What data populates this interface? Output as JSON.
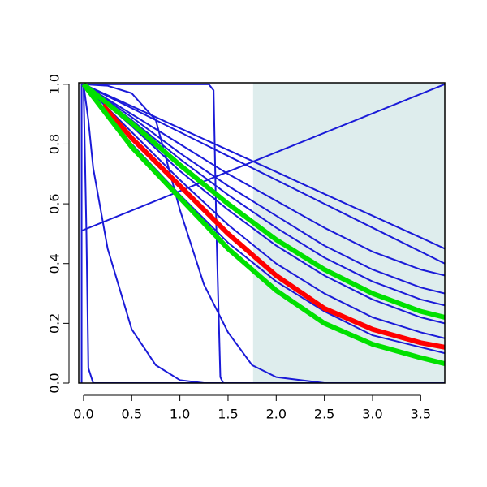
{
  "chart_data": {
    "type": "line",
    "xlim": [
      -0.05,
      3.75
    ],
    "ylim": [
      0,
      1.005
    ],
    "xticks": [
      {
        "value": 0,
        "label": "0.0"
      },
      0.5,
      {
        "value": 1,
        "label": "1.0"
      },
      1.5,
      {
        "value": 2,
        "label": "2.0"
      },
      2.5,
      {
        "value": 3,
        "label": "3.0"
      },
      3.5
    ],
    "yticks": [
      {
        "value": 0,
        "label": "0.0"
      },
      0.2,
      0.4,
      0.6,
      0.8,
      {
        "value": 1,
        "label": "1.0"
      }
    ],
    "shaded_x": [
      1.76,
      3.75
    ],
    "shade_color": "#deeded",
    "series": [
      {
        "color": "#1a1ad8",
        "x": [
          -0.02,
          3.75
        ],
        "values": [
          0.51,
          1.0
        ]
      },
      {
        "color": "#1a1ad8",
        "x": [
          -0.02,
          -0.02,
          0,
          0.03,
          0.05,
          0.1,
          3.75
        ],
        "values": [
          0,
          1,
          1,
          0.5,
          0.05,
          0,
          0
        ]
      },
      {
        "color": "#1a1ad8",
        "x": [
          0,
          0.05,
          0.1,
          0.25,
          0.5,
          0.75,
          1,
          1.25,
          3.75
        ],
        "values": [
          1,
          0.88,
          0.72,
          0.45,
          0.18,
          0.06,
          0.01,
          0,
          0
        ]
      },
      {
        "color": "#1a1ad8",
        "x": [
          0,
          0.25,
          0.5,
          0.75,
          1,
          1.25,
          1.5,
          1.75,
          2,
          2.5,
          3.75
        ],
        "values": [
          1,
          0.995,
          0.97,
          0.88,
          0.58,
          0.33,
          0.17,
          0.06,
          0.02,
          0,
          0
        ]
      },
      {
        "color": "#1a1ad8",
        "x": [
          0,
          1.3,
          1.35,
          1.38,
          1.42,
          1.45,
          3.75
        ],
        "values": [
          1,
          1,
          0.98,
          0.5,
          0.02,
          0,
          0
        ]
      },
      {
        "color": "#1a1ad8",
        "x": [
          0,
          0.5,
          1,
          1.5,
          2,
          2.5,
          3,
          3.5,
          3.75
        ],
        "values": [
          1,
          0.927,
          0.853,
          0.78,
          0.707,
          0.633,
          0.56,
          0.487,
          0.45
        ]
      },
      {
        "color": "#1a1ad8",
        "x": [
          0,
          0.5,
          1,
          1.5,
          2,
          2.5,
          3,
          3.5,
          3.75
        ],
        "values": [
          1,
          0.92,
          0.84,
          0.76,
          0.68,
          0.6,
          0.52,
          0.44,
          0.4
        ]
      },
      {
        "color": "#1a1ad8",
        "x": [
          0,
          0.5,
          1,
          1.5,
          2,
          2.5,
          3,
          3.5,
          3.75
        ],
        "values": [
          1,
          0.9,
          0.8,
          0.7,
          0.61,
          0.52,
          0.44,
          0.38,
          0.36
        ]
      },
      {
        "color": "#1a1ad8",
        "x": [
          0,
          0.5,
          1,
          1.5,
          2,
          2.5,
          3,
          3.5,
          3.75
        ],
        "values": [
          1,
          0.89,
          0.77,
          0.66,
          0.56,
          0.46,
          0.38,
          0.32,
          0.3
        ]
      },
      {
        "color": "#1a1ad8",
        "x": [
          0,
          0.5,
          1,
          1.5,
          2,
          2.5,
          3,
          3.5,
          3.75
        ],
        "values": [
          1,
          0.88,
          0.75,
          0.63,
          0.52,
          0.42,
          0.34,
          0.28,
          0.26
        ]
      },
      {
        "color": "#1a1ad8",
        "x": [
          0,
          0.5,
          1,
          1.5,
          2,
          2.5,
          3,
          3.5,
          3.75
        ],
        "values": [
          1,
          0.86,
          0.71,
          0.58,
          0.46,
          0.36,
          0.28,
          0.22,
          0.2
        ]
      },
      {
        "color": "#1a1ad8",
        "x": [
          0,
          0.5,
          1,
          1.5,
          2,
          2.5,
          3,
          3.5,
          3.75
        ],
        "values": [
          1,
          0.84,
          0.68,
          0.53,
          0.4,
          0.3,
          0.22,
          0.17,
          0.15
        ]
      },
      {
        "color": "#1a1ad8",
        "x": [
          0,
          0.5,
          1,
          1.5,
          2,
          2.5,
          3,
          3.5,
          3.75
        ],
        "values": [
          1,
          0.8,
          0.63,
          0.47,
          0.34,
          0.24,
          0.16,
          0.12,
          0.1
        ]
      },
      {
        "color": "#00e000",
        "x": [
          0,
          0.5,
          1,
          1.5,
          2,
          2.5,
          3,
          3.5,
          3.75
        ],
        "values": [
          1,
          0.87,
          0.73,
          0.6,
          0.48,
          0.38,
          0.3,
          0.24,
          0.22
        ]
      },
      {
        "color": "#ff0000",
        "x": [
          0.2,
          0.5,
          1,
          1.5,
          2,
          2.5,
          3,
          3.5,
          3.75
        ],
        "values": [
          0.93,
          0.82,
          0.66,
          0.5,
          0.36,
          0.25,
          0.18,
          0.135,
          0.12
        ]
      },
      {
        "color": "#00e000",
        "x": [
          0,
          0.5,
          1,
          1.5,
          2,
          2.5,
          3,
          3.5,
          3.75
        ],
        "values": [
          1,
          0.79,
          0.62,
          0.45,
          0.31,
          0.2,
          0.13,
          0.085,
          0.065
        ]
      }
    ]
  }
}
